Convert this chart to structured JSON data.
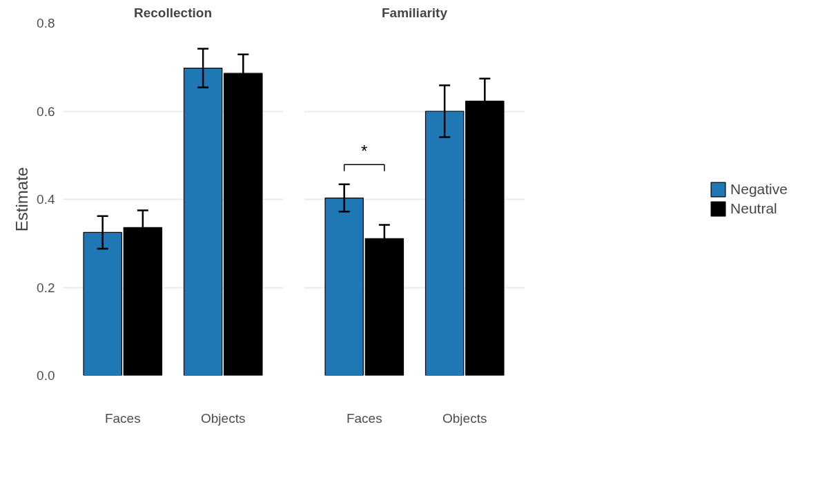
{
  "chart_data": [
    {
      "type": "bar",
      "title": "Recollection",
      "ylabel": "Estimate",
      "categories": [
        "Faces",
        "Objects"
      ],
      "series": [
        {
          "color": "#1f77b4",
          "values": [
            0.325,
            0.698
          ],
          "errors": [
            0.037,
            0.044
          ]
        },
        {
          "color": "#000000",
          "values": [
            0.336,
            0.686
          ],
          "errors": [
            0.039,
            0.043
          ]
        }
      ],
      "ylim": [
        0,
        0.8
      ],
      "yticks": [
        {
          "value": 0,
          "label": "0.0"
        },
        0.2,
        0.4,
        0.6,
        0.8
      ],
      "grid": "y"
    },
    {
      "type": "bar",
      "title": "Familiarity",
      "categories": [
        "Faces",
        "Objects"
      ],
      "series": [
        {
          "name": "Negative",
          "color": "#1f77b4",
          "values": [
            0.403,
            0.6
          ],
          "errors": [
            0.031,
            0.059
          ]
        },
        {
          "name": "Neutral",
          "color": "#000000",
          "values": [
            0.311,
            0.623
          ],
          "errors": [
            0.031,
            0.051
          ]
        }
      ],
      "ylim": [
        0,
        0.8
      ],
      "yticks": [
        0,
        0.2,
        0.4,
        0.6,
        0.8
      ],
      "grid": "y",
      "tick_labels": "x",
      "legend": "right",
      "annotations": [
        "*"
      ]
    }
  ]
}
